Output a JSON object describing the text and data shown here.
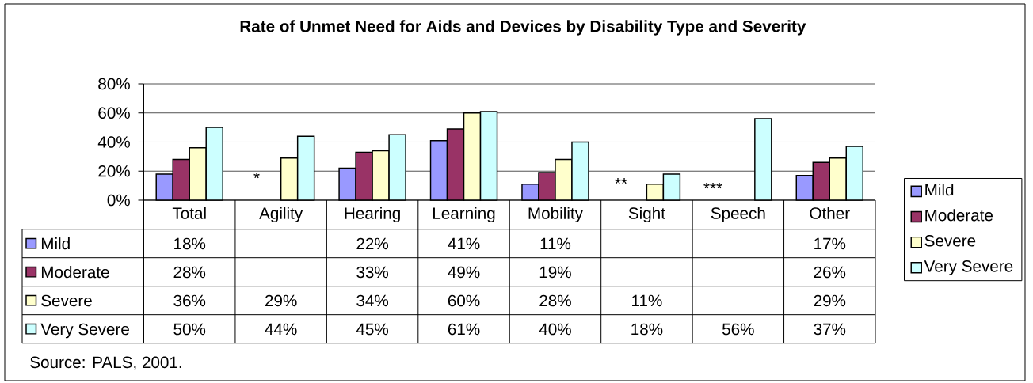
{
  "chart_data": {
    "type": "bar",
    "title": "Rate of Unmet Need for Aids and Devices by Disability Type and Severity",
    "categories": [
      "Total",
      "Agility",
      "Hearing",
      "Learning",
      "Mobility",
      "Sight",
      "Speech",
      "Other"
    ],
    "series": [
      {
        "name": "Mild",
        "color": "#9999ff",
        "values": [
          18,
          null,
          22,
          41,
          11,
          null,
          null,
          17
        ],
        "value_labels": [
          "18%",
          null,
          "22%",
          "41%",
          "11%",
          null,
          null,
          "17%"
        ]
      },
      {
        "name": "Moderate",
        "color": "#993366",
        "values": [
          28,
          null,
          33,
          49,
          19,
          null,
          null,
          26
        ],
        "value_labels": [
          "28%",
          null,
          "33%",
          "49%",
          "19%",
          null,
          null,
          "26%"
        ]
      },
      {
        "name": "Severe",
        "color": "#ffffcc",
        "values": [
          36,
          29,
          34,
          60,
          28,
          11,
          null,
          29
        ],
        "value_labels": [
          "36%",
          "29%",
          "34%",
          "60%",
          "28%",
          "11%",
          null,
          "29%"
        ]
      },
      {
        "name": "Very Severe",
        "color": "#ccffff",
        "values": [
          50,
          44,
          45,
          61,
          40,
          18,
          56,
          37
        ],
        "value_labels": [
          "50%",
          "44%",
          "45%",
          "61%",
          "40%",
          "18%",
          "56%",
          "37%"
        ]
      }
    ],
    "ylim": [
      0,
      80
    ],
    "yticks": [
      {
        "value": 0,
        "label": "0%"
      },
      {
        "value": 20,
        "label": "20%"
      },
      {
        "value": 40,
        "label": "40%"
      },
      {
        "value": 60,
        "label": "60%"
      },
      {
        "value": 80,
        "label": "80%"
      }
    ],
    "grid": "y",
    "legend": "right",
    "annotations": [
      "Source: PALS, 2001.",
      "*",
      "**",
      "***"
    ]
  }
}
